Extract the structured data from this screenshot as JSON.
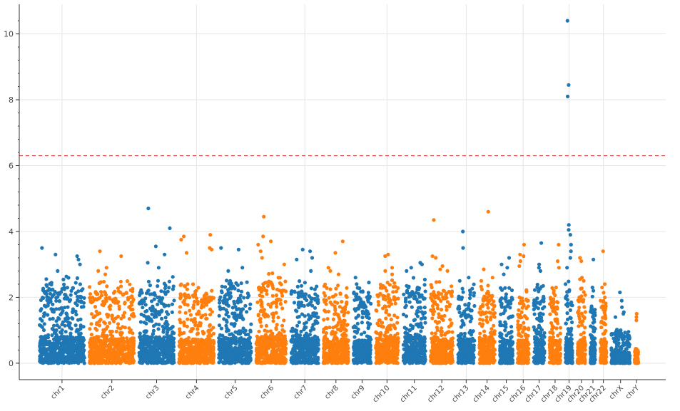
{
  "chart_data": {
    "type": "scatter",
    "title": "",
    "xlabel": "",
    "ylabel": "",
    "ylim": [
      -0.5,
      10.9
    ],
    "yticks": [
      0,
      2,
      4,
      6,
      8,
      10
    ],
    "grid": true,
    "threshold": {
      "y": 6.3,
      "color": "#d62728",
      "style": "dashed"
    },
    "colors": [
      "#1f77b4",
      "#ff7f0e"
    ],
    "chromosomes": [
      {
        "label": "chr1",
        "start": 0.0,
        "end": 10.0,
        "base_max": 2.3,
        "peaks": [
          3.5,
          3.3,
          3.25,
          3.15,
          3.0,
          2.8
        ]
      },
      {
        "label": "chr2",
        "start": 10.0,
        "end": 20.0,
        "base_max": 2.2,
        "peaks": [
          3.4,
          3.25,
          2.9,
          2.8,
          2.7
        ]
      },
      {
        "label": "chr3",
        "start": 20.0,
        "end": 28.0,
        "base_max": 2.3,
        "peaks": [
          4.7,
          4.1,
          3.55,
          3.3,
          3.05,
          2.9
        ]
      },
      {
        "label": "chr4",
        "start": 28.0,
        "end": 36.0,
        "base_max": 2.1,
        "peaks": [
          3.9,
          3.85,
          3.75,
          3.5,
          3.45,
          3.35
        ]
      },
      {
        "label": "chr5",
        "start": 36.0,
        "end": 43.5,
        "base_max": 2.2,
        "peaks": [
          3.5,
          3.45,
          2.9,
          2.8
        ]
      },
      {
        "label": "chr6",
        "start": 43.5,
        "end": 50.5,
        "base_max": 2.4,
        "peaks": [
          4.45,
          3.85,
          3.7,
          3.6,
          3.4,
          3.2,
          3.0
        ]
      },
      {
        "label": "chr7",
        "start": 50.5,
        "end": 57.0,
        "base_max": 2.2,
        "peaks": [
          3.45,
          3.4,
          3.2,
          3.15,
          2.8
        ]
      },
      {
        "label": "chr8",
        "start": 57.0,
        "end": 63.0,
        "base_max": 2.1,
        "peaks": [
          3.7,
          3.35,
          2.9,
          2.8,
          2.7
        ]
      },
      {
        "label": "chr9",
        "start": 63.0,
        "end": 67.5,
        "base_max": 2.0,
        "peaks": [
          2.6,
          2.45,
          2.4
        ]
      },
      {
        "label": "chr10",
        "start": 67.5,
        "end": 73.0,
        "base_max": 2.2,
        "peaks": [
          3.3,
          3.25,
          2.9,
          2.8,
          2.7
        ]
      },
      {
        "label": "chr11",
        "start": 73.0,
        "end": 78.5,
        "base_max": 2.3,
        "peaks": [
          3.05,
          3.0,
          2.9,
          2.8
        ]
      },
      {
        "label": "chr12",
        "start": 78.5,
        "end": 84.0,
        "base_max": 2.2,
        "peaks": [
          4.35,
          3.25,
          3.2,
          2.95,
          2.85,
          2.8
        ]
      },
      {
        "label": "chr13",
        "start": 84.0,
        "end": 88.3,
        "base_max": 2.1,
        "peaks": [
          4.0,
          3.5,
          2.6,
          2.5
        ]
      },
      {
        "label": "chr14",
        "start": 88.3,
        "end": 92.4,
        "base_max": 2.1,
        "peaks": [
          4.6,
          2.85,
          2.6,
          2.5
        ]
      },
      {
        "label": "chr15",
        "start": 92.4,
        "end": 96.0,
        "base_max": 2.0,
        "peaks": [
          3.2,
          3.0,
          2.9,
          2.7
        ]
      },
      {
        "label": "chr16",
        "start": 96.0,
        "end": 99.2,
        "base_max": 2.0,
        "peaks": [
          3.6,
          3.3,
          3.25,
          3.1,
          2.95
        ]
      },
      {
        "label": "chr17",
        "start": 99.2,
        "end": 102.4,
        "base_max": 2.1,
        "peaks": [
          3.65,
          3.0,
          2.9,
          2.8
        ]
      },
      {
        "label": "chr18",
        "start": 102.4,
        "end": 105.6,
        "base_max": 2.0,
        "peaks": [
          3.6,
          3.1,
          2.9,
          2.3
        ]
      },
      {
        "label": "chr19",
        "start": 105.6,
        "end": 108.0,
        "base_max": 2.2,
        "peaks": [
          10.4,
          8.45,
          8.1,
          4.2,
          4.05,
          3.9,
          3.6,
          3.4,
          3.2,
          2.9
        ]
      },
      {
        "label": "chr20",
        "start": 108.0,
        "end": 110.6,
        "base_max": 2.0,
        "peaks": [
          3.2,
          3.1,
          2.6,
          2.55,
          2.5
        ]
      },
      {
        "label": "chr21",
        "start": 110.6,
        "end": 112.6,
        "base_max": 1.8,
        "peaks": [
          3.15,
          2.3,
          2.2
        ]
      },
      {
        "label": "chr22",
        "start": 112.6,
        "end": 114.8,
        "base_max": 2.0,
        "peaks": [
          3.4,
          2.4,
          2.3
        ]
      },
      {
        "label": "chrX",
        "start": 114.8,
        "end": 119.5,
        "base_max": 0.9,
        "peaks": [
          2.15,
          1.9,
          1.7,
          1.55,
          1.5,
          1.4
        ]
      },
      {
        "label": "chrY",
        "start": 119.5,
        "end": 121.2,
        "base_max": 0.4,
        "peaks": [
          1.5,
          1.4,
          1.3
        ]
      }
    ]
  }
}
